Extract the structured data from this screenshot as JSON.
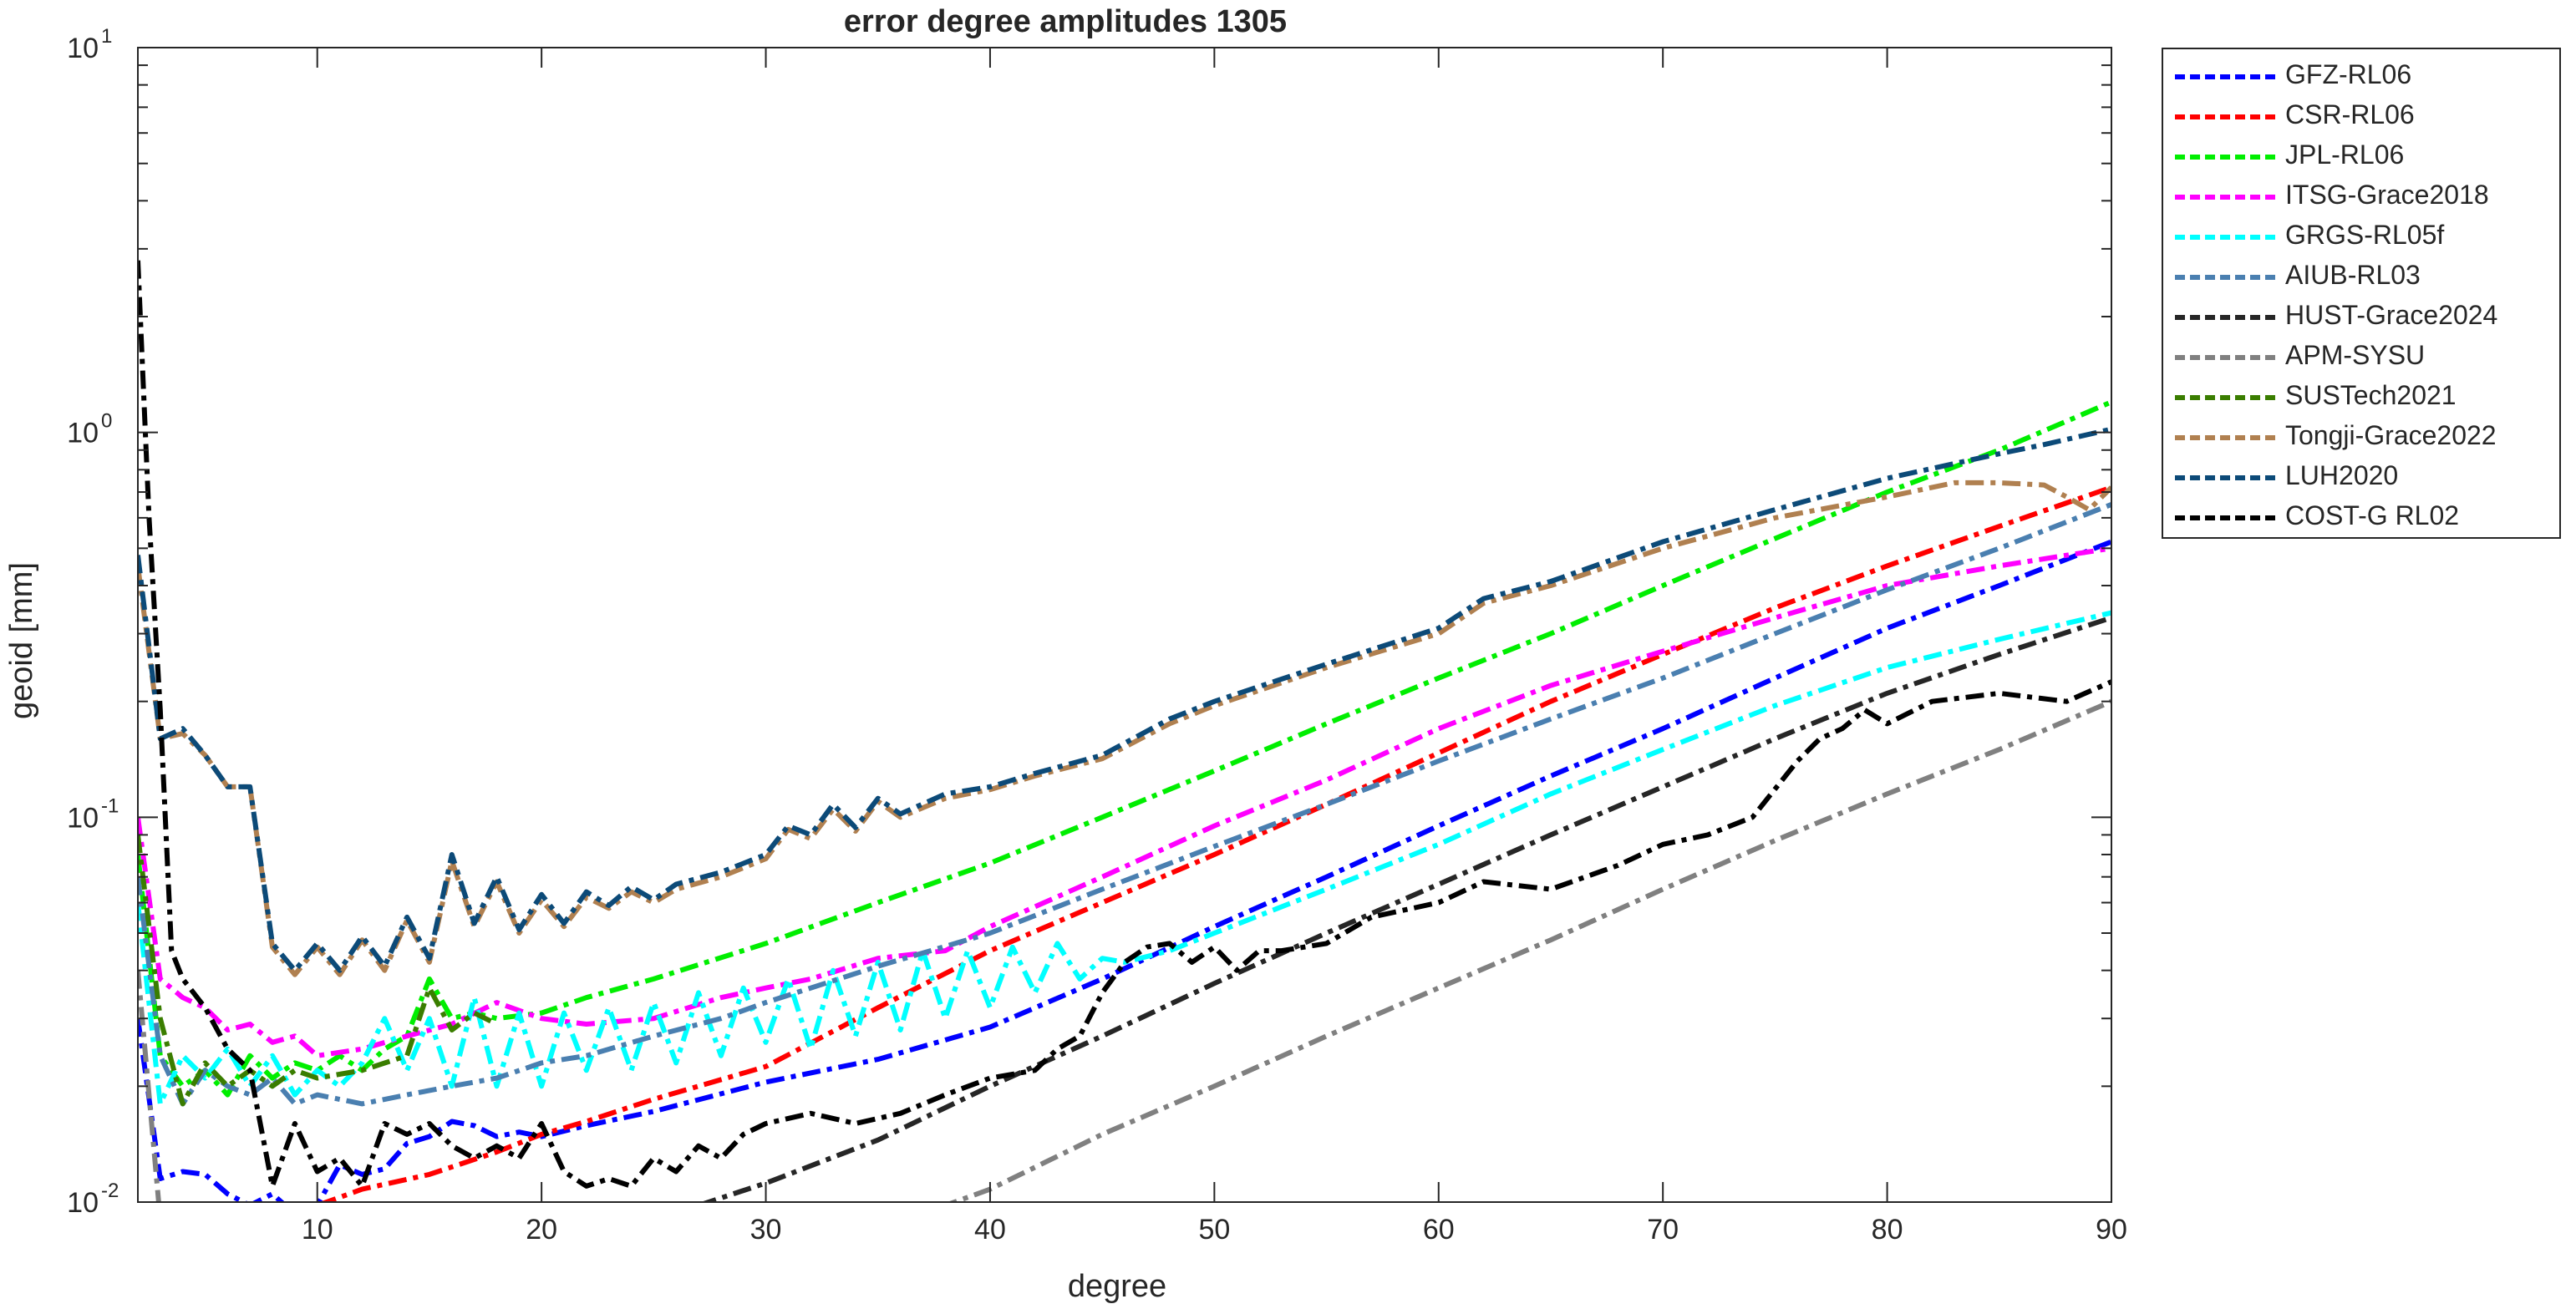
{
  "chart_data": {
    "type": "line",
    "title": "error degree amplitudes 1305",
    "xlabel": "degree",
    "ylabel": "geoid [mm]",
    "xlim": [
      2,
      90
    ],
    "ylim": [
      0.01,
      10
    ],
    "yscale": "log",
    "xticks": [
      10,
      20,
      30,
      40,
      50,
      60,
      70,
      80,
      90
    ],
    "yticks": [
      {
        "value": 0.01,
        "base": "10",
        "exp": "-2"
      },
      {
        "value": 0.1,
        "base": "10",
        "exp": "-1"
      },
      {
        "value": 1,
        "base": "10",
        "exp": "0"
      },
      {
        "value": 10,
        "base": "10",
        "exp": "1"
      }
    ],
    "grid": false,
    "legend_position": "outside-top-right",
    "series": [
      {
        "name": "GFZ-RL06",
        "color": "#0000ff",
        "x": [
          2,
          3,
          4,
          5,
          6,
          7,
          8,
          9,
          10,
          11,
          12,
          13,
          14,
          15,
          16,
          17,
          18,
          19,
          20,
          22,
          25,
          30,
          35,
          40,
          45,
          50,
          55,
          60,
          65,
          70,
          75,
          80,
          85,
          90
        ],
        "y": [
          0.03,
          0.0115,
          0.012,
          0.0118,
          0.0105,
          0.0098,
          0.0105,
          0.0093,
          0.0098,
          0.0125,
          0.0118,
          0.0122,
          0.0142,
          0.0148,
          0.0162,
          0.0158,
          0.0148,
          0.0152,
          0.0148,
          0.0158,
          0.0172,
          0.0205,
          0.0235,
          0.0285,
          0.038,
          0.052,
          0.07,
          0.095,
          0.128,
          0.17,
          0.23,
          0.31,
          0.4,
          0.52
        ]
      },
      {
        "name": "CSR-RL06",
        "color": "#ff0000",
        "x": [
          2,
          10,
          12,
          15,
          18,
          20,
          22,
          25,
          30,
          35,
          40,
          45,
          50,
          55,
          60,
          65,
          70,
          75,
          80,
          85,
          90
        ],
        "y": [
          0.008,
          0.0098,
          0.0108,
          0.0118,
          0.0135,
          0.015,
          0.0162,
          0.0185,
          0.0225,
          0.032,
          0.045,
          0.06,
          0.08,
          0.108,
          0.147,
          0.2,
          0.265,
          0.35,
          0.45,
          0.57,
          0.72
        ]
      },
      {
        "name": "JPL-RL06",
        "color": "#00ee00",
        "x": [
          2,
          3,
          4,
          5,
          6,
          7,
          8,
          9,
          10,
          11,
          12,
          13,
          14,
          15,
          16,
          17,
          18,
          20,
          22,
          25,
          30,
          35,
          40,
          45,
          50,
          55,
          60,
          65,
          70,
          75,
          80,
          85,
          90
        ],
        "y": [
          0.08,
          0.024,
          0.02,
          0.022,
          0.019,
          0.024,
          0.021,
          0.023,
          0.022,
          0.024,
          0.022,
          0.025,
          0.027,
          0.038,
          0.03,
          0.031,
          0.03,
          0.031,
          0.034,
          0.038,
          0.047,
          0.06,
          0.076,
          0.1,
          0.132,
          0.175,
          0.23,
          0.3,
          0.4,
          0.53,
          0.7,
          0.9,
          1.2
        ]
      },
      {
        "name": "ITSG-Grace2018",
        "color": "#ff00ff",
        "x": [
          2,
          3,
          4,
          5,
          6,
          7,
          8,
          9,
          10,
          12,
          14,
          16,
          18,
          20,
          22,
          25,
          28,
          30,
          32,
          35,
          38,
          40,
          45,
          50,
          55,
          60,
          65,
          70,
          75,
          80,
          85,
          90
        ],
        "y": [
          0.1,
          0.038,
          0.034,
          0.032,
          0.028,
          0.029,
          0.026,
          0.027,
          0.024,
          0.025,
          0.027,
          0.029,
          0.033,
          0.03,
          0.029,
          0.03,
          0.034,
          0.036,
          0.038,
          0.043,
          0.045,
          0.052,
          0.07,
          0.095,
          0.125,
          0.17,
          0.22,
          0.27,
          0.33,
          0.4,
          0.45,
          0.5
        ]
      },
      {
        "name": "GRGS-RL05f",
        "color": "#00ffff",
        "x": [
          2,
          3,
          4,
          5,
          6,
          7,
          8,
          9,
          10,
          11,
          12,
          13,
          14,
          15,
          16,
          17,
          18,
          19,
          20,
          21,
          22,
          23,
          24,
          25,
          26,
          27,
          28,
          29,
          30,
          31,
          32,
          33,
          34,
          35,
          36,
          37,
          38,
          39,
          40,
          41,
          42,
          43,
          44,
          45,
          46,
          48,
          50,
          55,
          60,
          65,
          70,
          75,
          80,
          85,
          90
        ],
        "y": [
          0.06,
          0.018,
          0.024,
          0.021,
          0.025,
          0.02,
          0.024,
          0.019,
          0.022,
          0.02,
          0.023,
          0.03,
          0.022,
          0.03,
          0.02,
          0.034,
          0.02,
          0.031,
          0.02,
          0.031,
          0.022,
          0.032,
          0.022,
          0.033,
          0.023,
          0.035,
          0.024,
          0.036,
          0.026,
          0.038,
          0.025,
          0.04,
          0.027,
          0.042,
          0.028,
          0.045,
          0.03,
          0.045,
          0.032,
          0.046,
          0.035,
          0.047,
          0.038,
          0.043,
          0.042,
          0.045,
          0.05,
          0.065,
          0.085,
          0.115,
          0.15,
          0.195,
          0.245,
          0.29,
          0.34
        ]
      },
      {
        "name": "AIUB-RL03",
        "color": "#4a7fb0",
        "x": [
          2,
          3,
          4,
          5,
          6,
          7,
          8,
          9,
          10,
          12,
          14,
          16,
          18,
          20,
          22,
          25,
          28,
          30,
          35,
          40,
          45,
          50,
          55,
          60,
          65,
          70,
          75,
          80,
          85,
          90
        ],
        "y": [
          0.07,
          0.024,
          0.018,
          0.022,
          0.02,
          0.019,
          0.021,
          0.018,
          0.019,
          0.018,
          0.019,
          0.02,
          0.021,
          0.023,
          0.024,
          0.027,
          0.03,
          0.033,
          0.041,
          0.05,
          0.065,
          0.084,
          0.108,
          0.14,
          0.18,
          0.23,
          0.3,
          0.39,
          0.5,
          0.65
        ]
      },
      {
        "name": "HUST-Grace2024",
        "color": "#262626",
        "x": [
          27,
          30,
          35,
          40,
          45,
          50,
          55,
          60,
          65,
          70,
          75,
          80,
          85,
          90
        ],
        "y": [
          0.0098,
          0.0112,
          0.0145,
          0.02,
          0.027,
          0.037,
          0.05,
          0.067,
          0.09,
          0.12,
          0.16,
          0.21,
          0.265,
          0.33
        ]
      },
      {
        "name": "APM-SYSU",
        "color": "#808080",
        "x": [
          2,
          3,
          38,
          40,
          45,
          50,
          55,
          60,
          65,
          70,
          75,
          80,
          85,
          90
        ],
        "y": [
          0.04,
          0.009,
          0.0098,
          0.0108,
          0.015,
          0.02,
          0.027,
          0.036,
          0.048,
          0.065,
          0.087,
          0.115,
          0.15,
          0.2
        ]
      },
      {
        "name": "SUSTech2021",
        "color": "#3a7d00",
        "x": [
          2,
          3,
          4,
          5,
          6,
          7,
          8,
          9,
          10,
          12,
          14,
          15,
          16,
          17,
          18
        ],
        "y": [
          0.09,
          0.03,
          0.018,
          0.023,
          0.02,
          0.022,
          0.02,
          0.022,
          0.021,
          0.022,
          0.024,
          0.036,
          0.028,
          0.031,
          0.029
        ]
      },
      {
        "name": "Tongji-Grace2022",
        "color": "#b08050",
        "x": [
          2,
          3,
          4,
          5,
          6,
          7,
          8,
          9,
          10,
          11,
          12,
          13,
          14,
          15,
          16,
          17,
          18,
          19,
          20,
          21,
          22,
          23,
          24,
          25,
          26,
          28,
          30,
          31,
          32,
          33,
          34,
          35,
          36,
          38,
          40,
          42,
          45,
          48,
          50,
          55,
          60,
          62,
          65,
          70,
          75,
          80,
          83,
          85,
          87,
          88,
          89,
          90
        ],
        "y": [
          0.45,
          0.16,
          0.165,
          0.145,
          0.12,
          0.12,
          0.046,
          0.039,
          0.046,
          0.039,
          0.048,
          0.04,
          0.054,
          0.042,
          0.077,
          0.052,
          0.068,
          0.05,
          0.061,
          0.052,
          0.062,
          0.058,
          0.064,
          0.06,
          0.065,
          0.07,
          0.078,
          0.093,
          0.088,
          0.105,
          0.092,
          0.11,
          0.1,
          0.112,
          0.118,
          0.128,
          0.142,
          0.175,
          0.195,
          0.245,
          0.3,
          0.36,
          0.4,
          0.5,
          0.6,
          0.68,
          0.74,
          0.74,
          0.73,
          0.68,
          0.63,
          0.72
        ]
      },
      {
        "name": "LUH2020",
        "color": "#0c4a78",
        "x": [
          2,
          3,
          4,
          5,
          6,
          7,
          8,
          9,
          10,
          11,
          12,
          13,
          14,
          15,
          16,
          17,
          18,
          19,
          20,
          21,
          22,
          23,
          24,
          25,
          26,
          28,
          30,
          31,
          32,
          33,
          34,
          35,
          36,
          38,
          40,
          42,
          45,
          48,
          50,
          55,
          60,
          62,
          65,
          70,
          75,
          80,
          83,
          85,
          87,
          90
        ],
        "y": [
          0.48,
          0.16,
          0.17,
          0.145,
          0.12,
          0.12,
          0.047,
          0.04,
          0.047,
          0.04,
          0.049,
          0.041,
          0.055,
          0.043,
          0.08,
          0.053,
          0.07,
          0.051,
          0.063,
          0.053,
          0.064,
          0.059,
          0.066,
          0.061,
          0.067,
          0.072,
          0.08,
          0.095,
          0.09,
          0.108,
          0.094,
          0.112,
          0.102,
          0.115,
          0.12,
          0.13,
          0.145,
          0.18,
          0.2,
          0.25,
          0.31,
          0.37,
          0.41,
          0.52,
          0.63,
          0.76,
          0.83,
          0.88,
          0.93,
          1.02
        ]
      },
      {
        "name": "COST-G RL02",
        "color": "#000000",
        "x": [
          2,
          2.5,
          3,
          3.5,
          4,
          5,
          6,
          7,
          8,
          9,
          10,
          11,
          12,
          13,
          14,
          15,
          16,
          17,
          18,
          19,
          20,
          21,
          22,
          23,
          24,
          25,
          26,
          27,
          28,
          29,
          30,
          32,
          34,
          36,
          38,
          40,
          42,
          43,
          44,
          45,
          46,
          47,
          48,
          49,
          50,
          51,
          52,
          53,
          55,
          57,
          60,
          62,
          65,
          68,
          70,
          72,
          74,
          76,
          77,
          78,
          79,
          80,
          82,
          85,
          88,
          90
        ],
        "y": [
          2.8,
          0.6,
          0.19,
          0.045,
          0.038,
          0.032,
          0.025,
          0.022,
          0.011,
          0.016,
          0.012,
          0.013,
          0.011,
          0.016,
          0.015,
          0.016,
          0.014,
          0.013,
          0.014,
          0.013,
          0.016,
          0.012,
          0.011,
          0.0115,
          0.011,
          0.013,
          0.012,
          0.014,
          0.013,
          0.015,
          0.016,
          0.017,
          0.016,
          0.017,
          0.019,
          0.021,
          0.022,
          0.025,
          0.027,
          0.035,
          0.042,
          0.046,
          0.047,
          0.042,
          0.046,
          0.04,
          0.045,
          0.045,
          0.047,
          0.055,
          0.06,
          0.068,
          0.065,
          0.075,
          0.085,
          0.09,
          0.1,
          0.14,
          0.16,
          0.17,
          0.19,
          0.175,
          0.2,
          0.21,
          0.2,
          0.225
        ]
      }
    ]
  }
}
